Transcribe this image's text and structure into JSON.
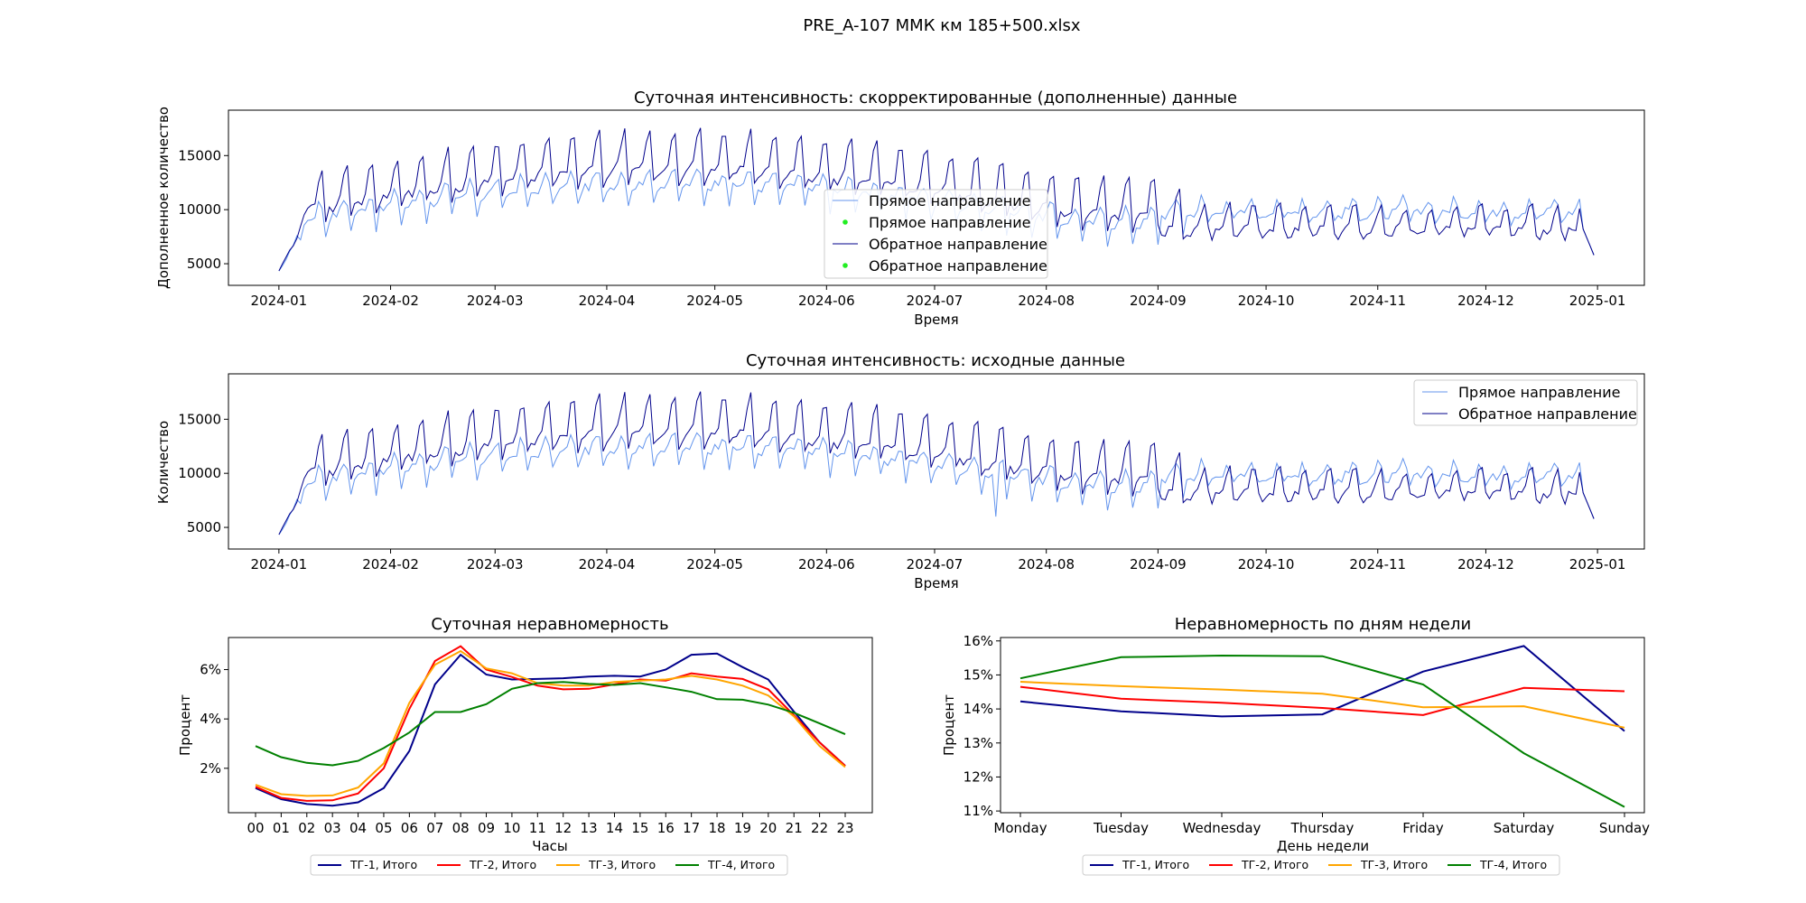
{
  "figure_title": "PRE_A-107 ММК км 185+500.xlsx",
  "colors": {
    "forward": "#6495ed",
    "backward": "#00008b",
    "marker": "#22ee22",
    "tg1": "#00008b",
    "tg2": "#ff0000",
    "tg3": "#ffa500",
    "tg4": "#008000"
  },
  "chart_data": [
    {
      "type": "line",
      "title": "Суточная интенсивность: скорректированные (дополненные) данные",
      "xlabel": "Время",
      "ylabel": "Дополненное количество",
      "x_range": [
        "2023-12-18",
        "2025-01-14"
      ],
      "xticks": [
        "2024-01",
        "2024-02",
        "2024-03",
        "2024-04",
        "2024-05",
        "2024-06",
        "2024-07",
        "2024-08",
        "2024-09",
        "2024-10",
        "2024-11",
        "2024-12",
        "2025-01"
      ],
      "ylim": [
        3000,
        19200
      ],
      "yticks": [
        5000,
        10000,
        15000
      ],
      "legend_position": "lower center",
      "legend": [
        "Прямое направление",
        "Прямое направление",
        "Обратное направление",
        "Обратное направление"
      ],
      "series": [
        {
          "name": "Прямое направление",
          "style": "line",
          "color": "forward"
        },
        {
          "name": "Прямое направление",
          "style": "marker",
          "color": "marker"
        },
        {
          "name": "Обратное направление",
          "style": "line",
          "color": "backward"
        },
        {
          "name": "Обратное направление",
          "style": "marker",
          "color": "marker"
        }
      ],
      "daily_series": true
    },
    {
      "type": "line",
      "title": "Суточная интенсивность: исходные данные",
      "xlabel": "Время",
      "ylabel": "Количество",
      "x_range": [
        "2023-12-18",
        "2025-01-14"
      ],
      "xticks": [
        "2024-01",
        "2024-02",
        "2024-03",
        "2024-04",
        "2024-05",
        "2024-06",
        "2024-07",
        "2024-08",
        "2024-09",
        "2024-10",
        "2024-11",
        "2024-12",
        "2025-01"
      ],
      "ylim": [
        3000,
        19200
      ],
      "yticks": [
        5000,
        10000,
        15000
      ],
      "legend_position": "upper right",
      "legend": [
        "Прямое направление",
        "Обратное направление"
      ],
      "series": [
        {
          "name": "Прямое направление",
          "style": "line",
          "color": "forward"
        },
        {
          "name": "Обратное направление",
          "style": "line",
          "color": "backward"
        }
      ],
      "daily_series": true
    },
    {
      "type": "line",
      "title": "Суточная неравномерность",
      "xlabel": "Часы",
      "ylabel": "Процент",
      "categories": [
        "00",
        "01",
        "02",
        "03",
        "04",
        "05",
        "06",
        "07",
        "08",
        "09",
        "10",
        "11",
        "12",
        "13",
        "14",
        "15",
        "16",
        "17",
        "18",
        "19",
        "20",
        "21",
        "22",
        "23"
      ],
      "ylim": [
        0.2,
        7.3
      ],
      "yticks": [
        2,
        4,
        6
      ],
      "ytick_labels": [
        "2%",
        "4%",
        "6%"
      ],
      "legend_position": "below",
      "series": [
        {
          "name": "ТГ-1, Итого",
          "color": "tg1",
          "values": [
            1.2,
            0.75,
            0.55,
            0.48,
            0.62,
            1.2,
            2.7,
            5.4,
            6.6,
            5.8,
            5.6,
            5.62,
            5.65,
            5.72,
            5.75,
            5.72,
            6.0,
            6.6,
            6.65,
            6.1,
            5.6,
            4.3,
            3.05,
            2.1
          ]
        },
        {
          "name": "ТГ-2, Итого",
          "color": "tg2",
          "values": [
            1.25,
            0.8,
            0.68,
            0.7,
            0.98,
            2.0,
            4.4,
            6.35,
            6.95,
            6.0,
            5.7,
            5.35,
            5.2,
            5.22,
            5.4,
            5.6,
            5.55,
            5.85,
            5.72,
            5.62,
            5.2,
            4.15,
            3.05,
            2.1
          ]
        },
        {
          "name": "ТГ-3, Итого",
          "color": "tg3",
          "values": [
            1.33,
            0.95,
            0.88,
            0.9,
            1.22,
            2.2,
            4.65,
            6.2,
            6.75,
            6.05,
            5.85,
            5.45,
            5.35,
            5.35,
            5.5,
            5.55,
            5.6,
            5.75,
            5.6,
            5.35,
            4.95,
            4.1,
            2.9,
            2.05
          ]
        },
        {
          "name": "ТГ-4, Итого",
          "color": "tg4",
          "values": [
            2.9,
            2.45,
            2.22,
            2.12,
            2.3,
            2.82,
            3.45,
            4.28,
            4.28,
            4.6,
            5.22,
            5.45,
            5.5,
            5.42,
            5.38,
            5.45,
            5.28,
            5.1,
            4.8,
            4.78,
            4.58,
            4.25,
            3.82,
            3.38
          ]
        }
      ]
    },
    {
      "type": "line",
      "title": "Неравномерность по дням недели",
      "xlabel": "День недели",
      "ylabel": "Процент",
      "categories": [
        "Monday",
        "Tuesday",
        "Wednesday",
        "Thursday",
        "Friday",
        "Saturday",
        "Sunday"
      ],
      "ylim": [
        10.95,
        16.1
      ],
      "yticks": [
        11,
        12,
        13,
        14,
        15,
        16
      ],
      "ytick_labels": [
        "11%",
        "12%",
        "13%",
        "14%",
        "15%",
        "16%"
      ],
      "legend_position": "below",
      "series": [
        {
          "name": "ТГ-1, Итого",
          "color": "tg1",
          "values": [
            14.22,
            13.93,
            13.78,
            13.84,
            15.1,
            15.85,
            13.35
          ]
        },
        {
          "name": "ТГ-2, Итого",
          "color": "tg2",
          "values": [
            14.65,
            14.3,
            14.18,
            14.03,
            13.82,
            14.62,
            14.52
          ]
        },
        {
          "name": "ТГ-3, Итого",
          "color": "tg3",
          "values": [
            14.8,
            14.67,
            14.57,
            14.45,
            14.05,
            14.08,
            13.45
          ]
        },
        {
          "name": "ТГ-4, Итого",
          "color": "tg4",
          "values": [
            14.9,
            15.52,
            15.57,
            15.55,
            14.72,
            12.7,
            11.12
          ]
        }
      ]
    }
  ]
}
